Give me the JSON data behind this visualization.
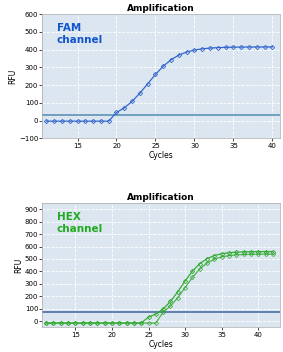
{
  "fam": {
    "title": "Amplification",
    "label": "FAM\nchannel",
    "label_color": "#1155cc",
    "line_color": "#3366cc",
    "marker_color": "#3366cc",
    "threshold": 30,
    "threshold_color": "#6699bb",
    "xlim": [
      10.5,
      41
    ],
    "ylim": [
      -100,
      600
    ],
    "xticks": [
      15,
      20,
      25,
      30,
      35,
      40
    ],
    "yticks": [
      -100,
      0,
      100,
      200,
      300,
      400,
      500,
      600
    ],
    "xlabel": "Cycles",
    "ylabel": "RFU",
    "cycles_start": 11,
    "cycles_end": 40,
    "sigmoid_mid": 24.0,
    "sigmoid_max": 415,
    "sigmoid_steepness": 0.52,
    "baseline": -3
  },
  "hex": {
    "title": "Amplification",
    "label": "HEX\nchannel",
    "label_color": "#22aa22",
    "line_color": "#33aa33",
    "marker_color": "#33aa33",
    "threshold": 75,
    "threshold_color": "#5577aa",
    "xlim": [
      10.5,
      43
    ],
    "ylim": [
      -50,
      950
    ],
    "xticks": [
      15,
      20,
      25,
      30,
      35,
      40
    ],
    "yticks": [
      0,
      100,
      200,
      300,
      400,
      500,
      600,
      700,
      800,
      900
    ],
    "xlabel": "Cycles",
    "ylabel": "RFU",
    "cycles_start": 11,
    "cycles_end": 42,
    "sigmoid_mid": 29.5,
    "sigmoid_max": 560,
    "sigmoid_steepness": 0.62,
    "sigmoid_mid2": 30.0,
    "sigmoid_max2": 540,
    "sigmoid_steepness2": 0.62,
    "baseline": -15
  },
  "background_color": "#dce6f1",
  "title_fontsize": 6.5,
  "label_fontsize": 7.5,
  "axis_fontsize": 5.5,
  "tick_fontsize": 5.0
}
